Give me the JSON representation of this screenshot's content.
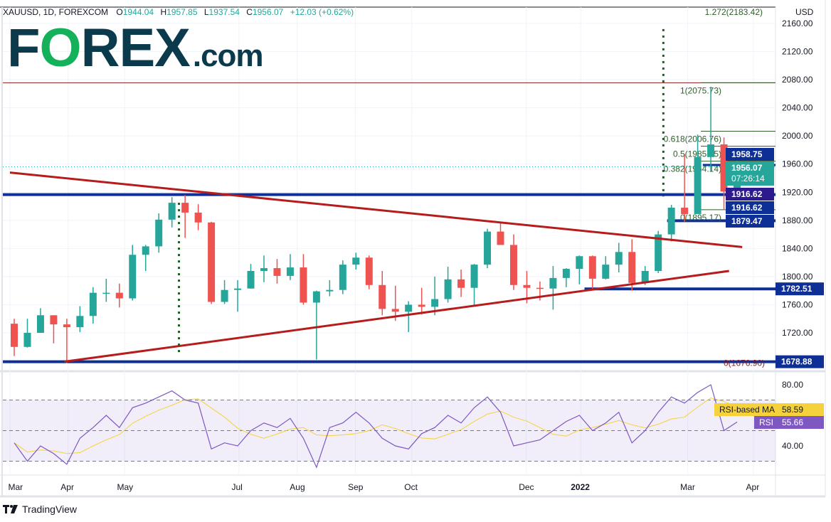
{
  "header": {
    "symbol": "XAUUSD, 1D, FOREXCOM",
    "open_label": "O",
    "open": "1944.04",
    "high_label": "H",
    "high": "1957.85",
    "low_label": "L",
    "low": "1937.54",
    "close_label": "C",
    "close": "1956.07",
    "change": "+12.03 (+0.62%)"
  },
  "logo": {
    "main_pre": "F",
    "main_o": "O",
    "main_post": "REX",
    "suffix": ".com"
  },
  "footer": {
    "brand": "TradingView"
  },
  "colors": {
    "up": "#26a69a",
    "down": "#ef5350",
    "support": "#0d2f96",
    "trendline": "#b71c1c",
    "fib": "#2e5e2a",
    "rsi": "#7e57c2",
    "rsi_ma": "#f5d23b",
    "logo_dark": "#0b3a4d",
    "logo_green": "#14b05a"
  },
  "chart_data": {
    "type": "candlestick",
    "currency": "USD",
    "ylim": [
      1660,
      2185
    ],
    "price_ticks": [
      "2160.00",
      "2120.00",
      "2080.00",
      "2040.00",
      "2000.00",
      "1960.00",
      "1920.00",
      "1880.00",
      "1840.00",
      "1800.00",
      "1760.00",
      "1720.00"
    ],
    "time_ticks": [
      {
        "label": "Mar",
        "date": "2021-03-01"
      },
      {
        "label": "Apr",
        "date": "2021-04-01"
      },
      {
        "label": "May",
        "date": "2021-05-01"
      },
      {
        "label": "Jul",
        "date": "2021-07-01"
      },
      {
        "label": "Aug",
        "date": "2021-08-01"
      },
      {
        "label": "Sep",
        "date": "2021-09-01"
      },
      {
        "label": "Oct",
        "date": "2021-10-01"
      },
      {
        "label": "Dec",
        "date": "2021-12-01"
      },
      {
        "label": "2022",
        "date": "2021-12-30",
        "bold": true
      },
      {
        "label": "Mar",
        "date": "2022-02-25"
      },
      {
        "label": "Apr",
        "date": "2022-04-01"
      }
    ],
    "candles": [
      [
        "2021-03-01",
        1733,
        1740,
        1687,
        1700
      ],
      [
        "2021-03-08",
        1700,
        1740,
        1699,
        1720
      ],
      [
        "2021-03-15",
        1720,
        1755,
        1720,
        1745
      ],
      [
        "2021-03-22",
        1745,
        1745,
        1705,
        1732
      ],
      [
        "2021-03-29",
        1732,
        1740,
        1677,
        1728
      ],
      [
        "2021-04-05",
        1728,
        1758,
        1721,
        1744
      ],
      [
        "2021-04-12",
        1744,
        1785,
        1733,
        1777
      ],
      [
        "2021-04-19",
        1777,
        1797,
        1764,
        1777
      ],
      [
        "2021-04-26",
        1777,
        1790,
        1756,
        1769
      ],
      [
        "2021-05-03",
        1769,
        1845,
        1766,
        1831
      ],
      [
        "2021-05-10",
        1831,
        1845,
        1808,
        1843
      ],
      [
        "2021-05-17",
        1843,
        1890,
        1834,
        1881
      ],
      [
        "2021-05-24",
        1881,
        1913,
        1870,
        1905
      ],
      [
        "2021-05-31",
        1905,
        1916,
        1855,
        1891
      ],
      [
        "2021-06-07",
        1891,
        1903,
        1866,
        1877
      ],
      [
        "2021-06-14",
        1877,
        1878,
        1761,
        1764
      ],
      [
        "2021-06-21",
        1764,
        1795,
        1761,
        1781
      ],
      [
        "2021-06-28",
        1781,
        1795,
        1750,
        1783
      ],
      [
        "2021-07-05",
        1783,
        1818,
        1783,
        1808
      ],
      [
        "2021-07-12",
        1808,
        1830,
        1792,
        1812
      ],
      [
        "2021-07-19",
        1812,
        1825,
        1790,
        1801
      ],
      [
        "2021-07-26",
        1801,
        1832,
        1795,
        1813
      ],
      [
        "2021-08-02",
        1813,
        1832,
        1760,
        1763
      ],
      [
        "2021-08-09",
        1763,
        1780,
        1682,
        1779
      ],
      [
        "2021-08-16",
        1779,
        1795,
        1772,
        1781
      ],
      [
        "2021-08-23",
        1781,
        1823,
        1775,
        1817
      ],
      [
        "2021-08-30",
        1817,
        1834,
        1810,
        1827
      ],
      [
        "2021-09-06",
        1827,
        1830,
        1782,
        1788
      ],
      [
        "2021-09-13",
        1788,
        1808,
        1745,
        1754
      ],
      [
        "2021-09-20",
        1754,
        1787,
        1737,
        1750
      ],
      [
        "2021-09-27",
        1750,
        1765,
        1721,
        1760
      ],
      [
        "2021-10-04",
        1760,
        1784,
        1746,
        1757
      ],
      [
        "2021-10-11",
        1757,
        1800,
        1745,
        1768
      ],
      [
        "2021-10-18",
        1768,
        1814,
        1763,
        1796
      ],
      [
        "2021-10-25",
        1796,
        1810,
        1771,
        1784
      ],
      [
        "2021-11-01",
        1784,
        1818,
        1758,
        1817
      ],
      [
        "2021-11-08",
        1817,
        1868,
        1812,
        1864
      ],
      [
        "2021-11-15",
        1864,
        1877,
        1849,
        1845
      ],
      [
        "2021-11-22",
        1845,
        1860,
        1781,
        1788
      ],
      [
        "2021-11-29",
        1788,
        1808,
        1762,
        1784
      ],
      [
        "2021-12-06",
        1784,
        1793,
        1766,
        1783
      ],
      [
        "2021-12-13",
        1783,
        1815,
        1753,
        1798
      ],
      [
        "2021-12-20",
        1798,
        1812,
        1785,
        1811
      ],
      [
        "2021-12-27",
        1811,
        1830,
        1789,
        1829
      ],
      [
        "2022-01-03",
        1829,
        1830,
        1782,
        1797
      ],
      [
        "2022-01-10",
        1797,
        1829,
        1796,
        1817
      ],
      [
        "2022-01-17",
        1817,
        1848,
        1806,
        1835
      ],
      [
        "2022-01-24",
        1835,
        1853,
        1780,
        1791
      ],
      [
        "2022-01-31",
        1791,
        1815,
        1788,
        1808
      ],
      [
        "2022-02-07",
        1808,
        1865,
        1805,
        1860
      ],
      [
        "2022-02-14",
        1860,
        1902,
        1850,
        1898
      ],
      [
        "2022-02-21",
        1898,
        1974,
        1878,
        1889
      ],
      [
        "2022-02-28",
        1889,
        2002,
        1889,
        1970
      ],
      [
        "2022-03-07",
        1970,
        2070,
        1950,
        1988
      ],
      [
        "2022-03-14",
        1988,
        1998,
        1895,
        1921
      ],
      [
        "2022-03-21",
        1921,
        1966,
        1910,
        1956
      ]
    ],
    "last_price": {
      "value": 1956.07,
      "label": "1956.07",
      "countdown": "07:26:14"
    },
    "support_levels": [
      {
        "value": 1916.62,
        "label": "1916.62",
        "tag_color": "#2e1a8f"
      },
      {
        "value": 1916.62,
        "label": "1916.62",
        "tag_color": "#0d2f96"
      },
      {
        "value": 1879.47,
        "label": "1879.47",
        "tag_color": "#0d2f96",
        "from": "2022-02-14"
      },
      {
        "value": 1782.51,
        "label": "1782.51",
        "tag_color": "#0d2f96",
        "from": "2022-01-01"
      },
      {
        "value": 1678.88,
        "label": "1678.88",
        "tag_color": "#0d2f96"
      }
    ],
    "short_level": {
      "value": 1958.75,
      "label": "1958.75",
      "from": "2022-03-05"
    },
    "fib_levels": [
      {
        "ratio": "1",
        "value": 2075.73,
        "label": "1(2075.73)"
      },
      {
        "ratio": "0.618",
        "value": 2006.76,
        "label": "0.618(2006.76)"
      },
      {
        "ratio": "0.5",
        "value": 1985.45,
        "label": "0.5(1985.45)"
      },
      {
        "ratio": "0.382",
        "value": 1964.14,
        "label": "0.382(1964.14)"
      },
      {
        "ratio": "0",
        "value": 1895.17,
        "label": "0(1895.17)"
      }
    ],
    "fib_extra_labels": [
      {
        "value": 2183.42,
        "label": "1.272(2183.42)"
      },
      {
        "value": 1676.9,
        "label": "0(1676.90)"
      }
    ],
    "trendlines": [
      {
        "name": "descending",
        "start": [
          "2021-03-01",
          1948
        ],
        "end": [
          "2022-03-26",
          1842
        ]
      },
      {
        "name": "ascending",
        "start": [
          "2021-03-30",
          1679
        ],
        "end": [
          "2022-03-19",
          1808
        ]
      }
    ],
    "vertical_markers": [
      {
        "date": "2021-05-30",
        "from": 1690,
        "to": 1905
      },
      {
        "date": "2022-02-12",
        "from": 1914,
        "to": 2152
      }
    ],
    "rsi": {
      "ticks": [
        "80.00",
        "40.00"
      ],
      "upper": 70,
      "middle": 50,
      "lower": 30,
      "values": [
        42,
        30,
        40,
        35,
        28,
        45,
        52,
        60,
        52,
        65,
        68,
        72,
        76,
        70,
        68,
        38,
        42,
        40,
        50,
        55,
        52,
        58,
        45,
        26,
        52,
        55,
        62,
        55,
        45,
        40,
        38,
        48,
        52,
        60,
        55,
        65,
        72,
        62,
        40,
        42,
        44,
        50,
        56,
        60,
        50,
        55,
        62,
        42,
        50,
        62,
        72,
        68,
        75,
        80,
        50,
        55.66
      ],
      "ma_label": "RSI-based MA",
      "ma_value": "58.59",
      "rsi_label": "RSI",
      "rsi_value": "55.66"
    }
  }
}
